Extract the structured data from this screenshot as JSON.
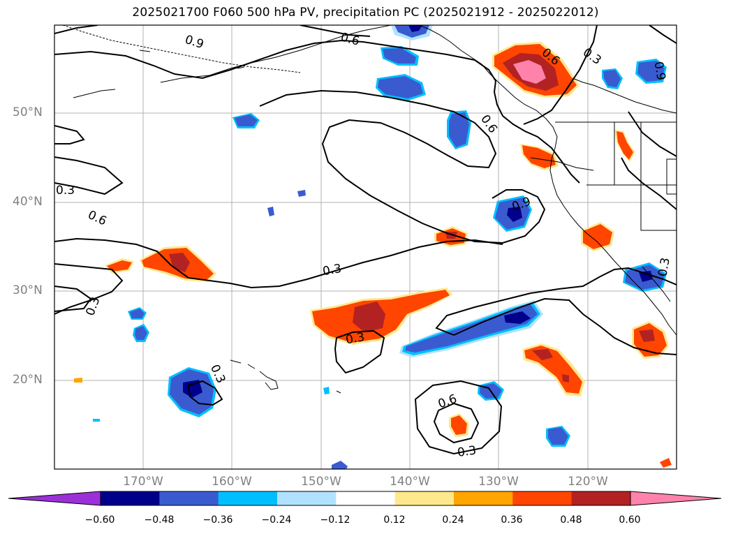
{
  "title": "2025021700 F060 500 hPa PV, precipitation PC (2025021912 - 2025022012)",
  "lat_labels": [
    "50°N",
    "40°N",
    "30°N",
    "20°N"
  ],
  "lon_labels": [
    "170°W",
    "160°W",
    "150°W",
    "140°W",
    "130°W",
    "120°W"
  ],
  "contour_labels": [
    "0.9",
    "0.6",
    "0.3",
    "0.6",
    "0.3",
    "0.6",
    "0.9",
    "0.3",
    "0.6",
    "0.3",
    "0.3",
    "0.3",
    "0.3",
    "0.6",
    "0.3",
    "0.9",
    "0.3"
  ],
  "colorbar": {
    "ticks": [
      "−0.60",
      "−0.48",
      "−0.36",
      "−0.24",
      "−0.12",
      "0.12",
      "0.24",
      "0.36",
      "0.48",
      "0.60"
    ],
    "colors": [
      "#9b30d8",
      "#00008b",
      "#3a5bd0",
      "#00bfff",
      "#b0e2ff",
      "#ffffff",
      "#ffe88c",
      "#ffa500",
      "#ff4500",
      "#b22222",
      "#ff82ab"
    ]
  }
}
